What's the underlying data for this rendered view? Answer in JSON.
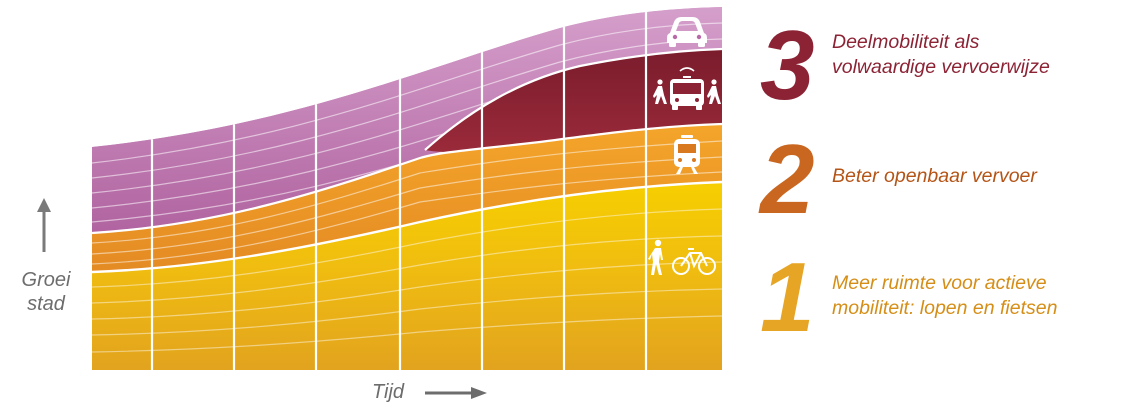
{
  "axes": {
    "y_label_line1": "Groei",
    "y_label_line2": "stad",
    "x_label": "Tijd"
  },
  "layers": [
    {
      "key": "active",
      "color": "#f2c200",
      "dark_color": "#e2a51a",
      "icon": "pedestrian-and-bicycle-icon"
    },
    {
      "key": "public_transport",
      "color": "#f39a24",
      "dark_color": "#c9661f",
      "icon": "train-icon"
    },
    {
      "key": "shared",
      "color": "#8c2335",
      "dark_color": "#7a1c2c",
      "icon": "bus-with-pedestrians-icon"
    },
    {
      "key": "car",
      "color": "#c688bc",
      "dark_color": "#9a3a84",
      "icon": "car-icon"
    }
  ],
  "legend": [
    {
      "number": "3",
      "line1": "Deelmobiliteit als",
      "line2": "volwaardige vervoerwijze",
      "number_color": "#8c2335",
      "text_color": "#8c2335"
    },
    {
      "number": "2",
      "line1": "Beter openbaar vervoer",
      "line2": "",
      "number_color": "#c9661f",
      "text_color": "#b45416"
    },
    {
      "number": "1",
      "line1": "Meer ruimte voor actieve",
      "line2": "mobiliteit: lopen en fietsen",
      "number_color": "#e6a525",
      "text_color": "#d58e17"
    }
  ]
}
